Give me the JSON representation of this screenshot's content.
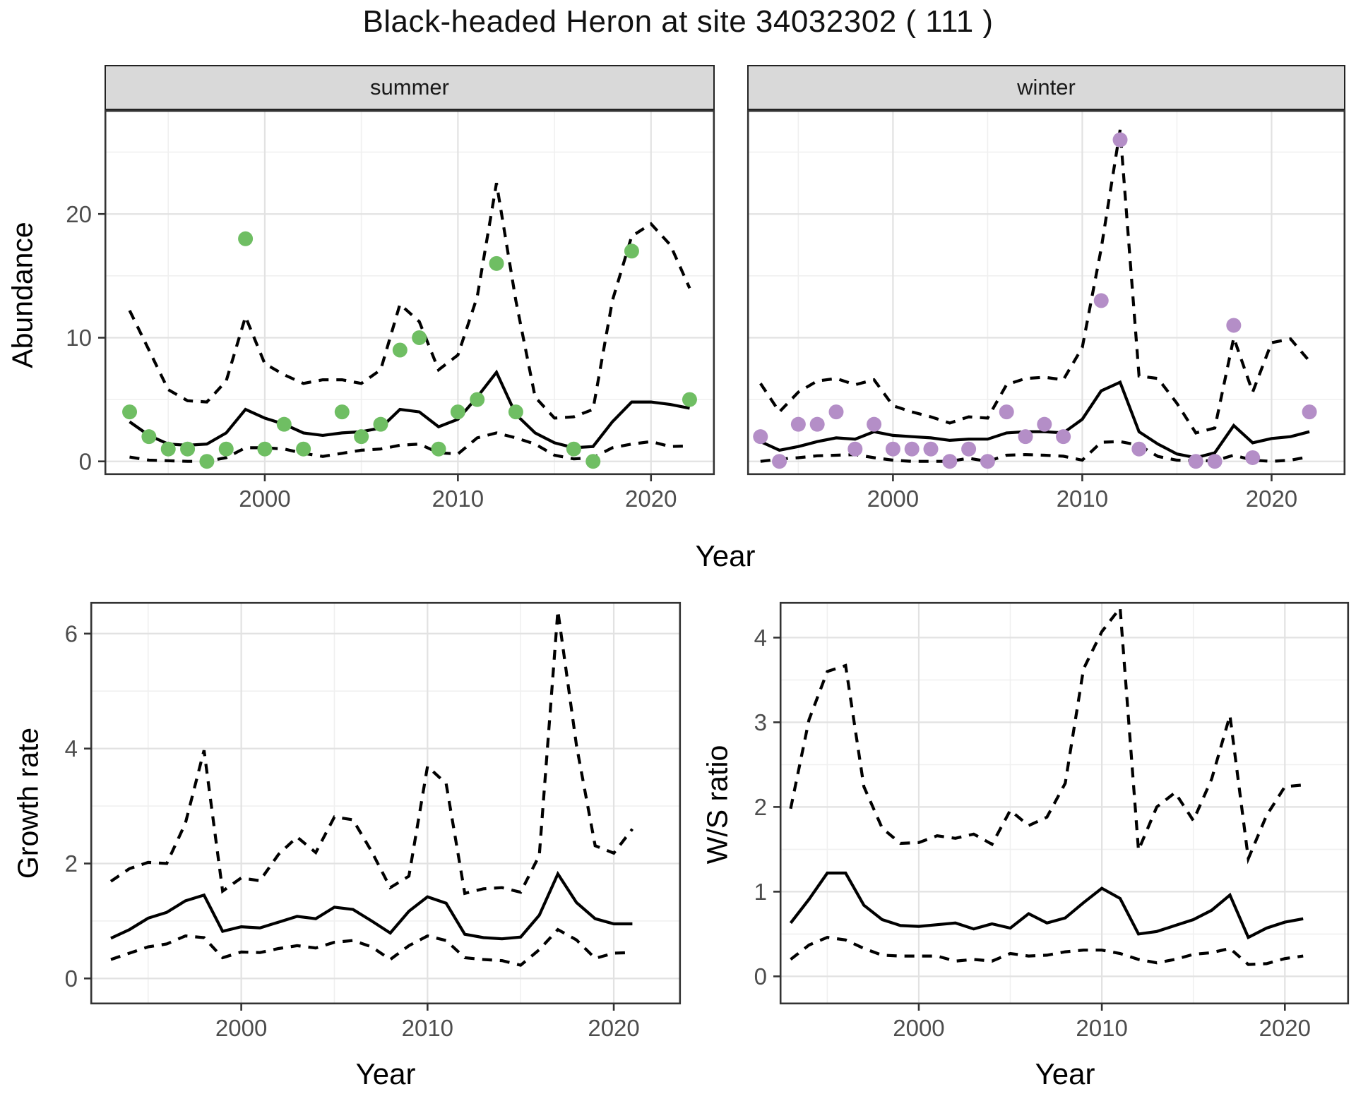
{
  "title": "Black-headed Heron at site 34032302 ( 111 )",
  "facets": [
    "summer",
    "winter"
  ],
  "axis_labels": {
    "year": "Year",
    "abundance": "Abundance",
    "growth_rate": "Growth rate",
    "ws_ratio": "W/S ratio"
  },
  "colors": {
    "summer_point": "#6fbe63",
    "winter_point": "#b48ec7",
    "line": "#000000",
    "grid_major": "#e2e2e2",
    "grid_minor": "#f0f0f0",
    "strip_bg": "#d9d9d9",
    "axis_text": "#4d4d4d",
    "panel_border": "#333333"
  },
  "chart_data": [
    {
      "id": "abundance_summer",
      "type": "line",
      "facet": "summer",
      "ylabel": "Abundance",
      "xlabel": "Year",
      "x_years": [
        1993,
        1994,
        1995,
        1996,
        1997,
        1998,
        1999,
        2000,
        2001,
        2002,
        2003,
        2004,
        2005,
        2006,
        2007,
        2008,
        2009,
        2010,
        2011,
        2012,
        2013,
        2014,
        2015,
        2016,
        2017,
        2018,
        2019,
        2020,
        2021,
        2022
      ],
      "series": [
        {
          "name": "median",
          "style": "solid",
          "values": [
            3.2,
            2.1,
            1.4,
            1.3,
            1.4,
            2.3,
            4.2,
            3.5,
            3.0,
            2.3,
            2.1,
            2.3,
            2.4,
            2.7,
            4.2,
            4.0,
            2.8,
            3.4,
            5.2,
            7.2,
            3.8,
            2.3,
            1.5,
            1.1,
            1.2,
            3.2,
            4.8,
            4.8,
            4.6,
            4.3
          ]
        },
        {
          "name": "upper_ci",
          "style": "dashed",
          "values": [
            12.2,
            9.0,
            5.8,
            4.9,
            4.8,
            6.5,
            11.7,
            7.9,
            7.0,
            6.3,
            6.6,
            6.6,
            6.3,
            7.4,
            12.7,
            11.3,
            7.4,
            8.6,
            13.3,
            22.5,
            13.0,
            5.2,
            3.5,
            3.6,
            4.2,
            13.0,
            18.2,
            19.2,
            17.5,
            14.0
          ]
        },
        {
          "name": "lower_ci",
          "style": "dashed",
          "values": [
            0.35,
            0.1,
            0.05,
            0,
            0,
            0.3,
            1.1,
            1.1,
            1.0,
            0.65,
            0.4,
            0.65,
            0.9,
            1.0,
            1.3,
            1.4,
            0.7,
            0.6,
            1.9,
            2.3,
            1.9,
            1.4,
            0.5,
            0.2,
            0.3,
            1.1,
            1.4,
            1.6,
            1.2,
            1.25
          ]
        }
      ],
      "points": [
        [
          1993,
          4
        ],
        [
          1994,
          2
        ],
        [
          1995,
          1
        ],
        [
          1996,
          1
        ],
        [
          1997,
          0
        ],
        [
          1998,
          1
        ],
        [
          1999,
          18
        ],
        [
          2000,
          1
        ],
        [
          2001,
          3
        ],
        [
          2002,
          1
        ],
        [
          2004,
          4
        ],
        [
          2005,
          2
        ],
        [
          2006,
          3
        ],
        [
          2007,
          9
        ],
        [
          2008,
          10
        ],
        [
          2009,
          1
        ],
        [
          2010,
          4
        ],
        [
          2011,
          5
        ],
        [
          2012,
          16
        ],
        [
          2013,
          4
        ],
        [
          2016,
          1
        ],
        [
          2017,
          0
        ],
        [
          2019,
          17
        ],
        [
          2022,
          5
        ]
      ],
      "point_color": "#6fbe63",
      "xlim": [
        1991.7,
        2023.3
      ],
      "ylim": [
        -1.1,
        28.4
      ],
      "x_ticks": [
        2000,
        2010,
        2020
      ],
      "x_minor": [
        1995,
        2005,
        2015
      ],
      "y_ticks": [
        0,
        10,
        20
      ],
      "y_minor": [
        5,
        15,
        25
      ],
      "show_y_tick_labels": true
    },
    {
      "id": "abundance_winter",
      "type": "line",
      "facet": "winter",
      "ylabel": "Abundance",
      "xlabel": "Year",
      "x_years": [
        1993,
        1994,
        1995,
        1996,
        1997,
        1998,
        1999,
        2000,
        2001,
        2002,
        2003,
        2004,
        2005,
        2006,
        2007,
        2008,
        2009,
        2010,
        2011,
        2012,
        2013,
        2014,
        2015,
        2016,
        2017,
        2018,
        2019,
        2020,
        2021,
        2022
      ],
      "series": [
        {
          "name": "median",
          "style": "solid",
          "values": [
            1.6,
            0.9,
            1.2,
            1.6,
            1.9,
            1.8,
            2.4,
            2.1,
            2.0,
            1.9,
            1.7,
            1.8,
            1.8,
            2.3,
            2.4,
            2.4,
            2.3,
            3.4,
            5.7,
            6.4,
            2.4,
            1.4,
            0.6,
            0.3,
            0.7,
            2.9,
            1.5,
            1.85,
            2.0,
            2.4
          ]
        },
        {
          "name": "upper_ci",
          "style": "dashed",
          "values": [
            6.3,
            4.0,
            5.6,
            6.5,
            6.7,
            6.2,
            6.6,
            4.5,
            4.0,
            3.6,
            3.1,
            3.6,
            3.5,
            6.2,
            6.7,
            6.8,
            6.6,
            9.2,
            17.2,
            26.8,
            6.9,
            6.7,
            4.7,
            2.3,
            2.7,
            10.0,
            5.6,
            9.6,
            9.9,
            8.1
          ]
        },
        {
          "name": "lower_ci",
          "style": "dashed",
          "values": [
            0,
            0.18,
            0.3,
            0.45,
            0.5,
            0.55,
            0.3,
            0.1,
            0,
            0,
            0,
            0.25,
            0,
            0.5,
            0.55,
            0.5,
            0.42,
            0.1,
            1.55,
            1.6,
            1.3,
            0.4,
            0.1,
            0.05,
            0.05,
            0.5,
            0.1,
            0,
            0.1,
            0.37
          ]
        }
      ],
      "points": [
        [
          1993,
          2
        ],
        [
          1994,
          0
        ],
        [
          1995,
          3
        ],
        [
          1996,
          3
        ],
        [
          1997,
          4
        ],
        [
          1998,
          1
        ],
        [
          1999,
          3
        ],
        [
          2000,
          1
        ],
        [
          2001,
          1
        ],
        [
          2002,
          1
        ],
        [
          2003,
          0
        ],
        [
          2004,
          1
        ],
        [
          2005,
          0
        ],
        [
          2006,
          4
        ],
        [
          2007,
          2
        ],
        [
          2008,
          3
        ],
        [
          2009,
          2
        ],
        [
          2011,
          13
        ],
        [
          2012,
          26
        ],
        [
          2013,
          1
        ],
        [
          2016,
          0
        ],
        [
          2017,
          0
        ],
        [
          2018,
          11
        ],
        [
          2019,
          0.3
        ],
        [
          2022,
          4
        ]
      ],
      "point_color": "#b48ec7",
      "xlim": [
        1992.3,
        2023.9
      ],
      "ylim": [
        -1.1,
        28.4
      ],
      "x_ticks": [
        2000,
        2010,
        2020
      ],
      "x_minor": [
        1995,
        2005,
        2015
      ],
      "y_ticks": [
        0,
        10,
        20
      ],
      "y_minor": [
        5,
        15,
        25
      ],
      "show_y_tick_labels": false
    },
    {
      "id": "growth_rate",
      "type": "line",
      "facet": null,
      "ylabel": "Growth rate",
      "xlabel": "Year",
      "x_years": [
        1993,
        1994,
        1995,
        1996,
        1997,
        1998,
        1999,
        2000,
        2001,
        2002,
        2003,
        2004,
        2005,
        2006,
        2007,
        2008,
        2009,
        2010,
        2011,
        2012,
        2013,
        2014,
        2015,
        2016,
        2017,
        2018,
        2019,
        2020,
        2021
      ],
      "series": [
        {
          "name": "median",
          "style": "solid",
          "values": [
            0.7,
            0.85,
            1.05,
            1.15,
            1.35,
            1.45,
            0.82,
            0.9,
            0.88,
            0.98,
            1.08,
            1.04,
            1.24,
            1.2,
            1.0,
            0.79,
            1.17,
            1.42,
            1.31,
            0.77,
            0.71,
            0.69,
            0.72,
            1.1,
            1.82,
            1.32,
            1.04,
            0.95,
            0.95
          ]
        },
        {
          "name": "upper_ci",
          "style": "dashed",
          "values": [
            1.69,
            1.91,
            2.02,
            2.0,
            2.7,
            3.97,
            1.52,
            1.75,
            1.7,
            2.16,
            2.46,
            2.19,
            2.81,
            2.76,
            2.21,
            1.58,
            1.78,
            3.69,
            3.39,
            1.48,
            1.56,
            1.58,
            1.5,
            2.14,
            6.4,
            4.05,
            2.31,
            2.18,
            2.6
          ]
        },
        {
          "name": "lower_ci",
          "style": "dashed",
          "values": [
            0.33,
            0.44,
            0.55,
            0.6,
            0.74,
            0.71,
            0.36,
            0.46,
            0.45,
            0.52,
            0.57,
            0.53,
            0.63,
            0.66,
            0.55,
            0.33,
            0.57,
            0.74,
            0.66,
            0.36,
            0.33,
            0.31,
            0.23,
            0.5,
            0.85,
            0.67,
            0.35,
            0.44,
            0.45
          ]
        }
      ],
      "points": [],
      "point_color": null,
      "xlim": [
        1991.9,
        2023.6
      ],
      "ylim": [
        -0.45,
        6.55
      ],
      "x_ticks": [
        2000,
        2010,
        2020
      ],
      "x_minor": [
        1995,
        2005,
        2015
      ],
      "y_ticks": [
        0,
        2,
        4,
        6
      ],
      "y_minor": [
        1,
        3,
        5
      ],
      "show_y_tick_labels": true
    },
    {
      "id": "ws_ratio",
      "type": "line",
      "facet": null,
      "ylabel": "W/S ratio",
      "xlabel": "Year",
      "x_years": [
        1993,
        1994,
        1995,
        1996,
        1997,
        1998,
        1999,
        2000,
        2001,
        2002,
        2003,
        2004,
        2005,
        2006,
        2007,
        2008,
        2009,
        2010,
        2011,
        2012,
        2013,
        2014,
        2015,
        2016,
        2017,
        2018,
        2019,
        2020,
        2021
      ],
      "series": [
        {
          "name": "median",
          "style": "solid",
          "values": [
            0.63,
            0.91,
            1.22,
            1.22,
            0.84,
            0.67,
            0.6,
            0.59,
            0.61,
            0.63,
            0.56,
            0.62,
            0.57,
            0.74,
            0.63,
            0.69,
            0.87,
            1.04,
            0.92,
            0.5,
            0.53,
            0.6,
            0.67,
            0.78,
            0.96,
            0.46,
            0.57,
            0.64,
            0.68
          ]
        },
        {
          "name": "upper_ci",
          "style": "dashed",
          "values": [
            1.98,
            3.03,
            3.6,
            3.67,
            2.24,
            1.75,
            1.57,
            1.58,
            1.66,
            1.63,
            1.68,
            1.56,
            1.96,
            1.78,
            1.88,
            2.28,
            3.63,
            4.07,
            4.35,
            1.49,
            2.0,
            2.17,
            1.84,
            2.33,
            3.08,
            1.39,
            1.9,
            2.24,
            2.26
          ]
        },
        {
          "name": "lower_ci",
          "style": "dashed",
          "values": [
            0.2,
            0.37,
            0.46,
            0.43,
            0.33,
            0.25,
            0.24,
            0.24,
            0.24,
            0.18,
            0.2,
            0.18,
            0.27,
            0.24,
            0.25,
            0.29,
            0.31,
            0.31,
            0.27,
            0.2,
            0.16,
            0.2,
            0.26,
            0.28,
            0.33,
            0.14,
            0.15,
            0.21,
            0.24
          ]
        }
      ],
      "points": [],
      "point_color": null,
      "xlim": [
        1992.4,
        2023.5
      ],
      "ylim": [
        -0.33,
        4.42
      ],
      "x_ticks": [
        2000,
        2010,
        2020
      ],
      "x_minor": [
        1995,
        2005,
        2015
      ],
      "y_ticks": [
        0,
        1,
        2,
        3,
        4
      ],
      "y_minor": [
        0.5,
        1.5,
        2.5,
        3.5
      ],
      "show_y_tick_labels": true
    }
  ]
}
